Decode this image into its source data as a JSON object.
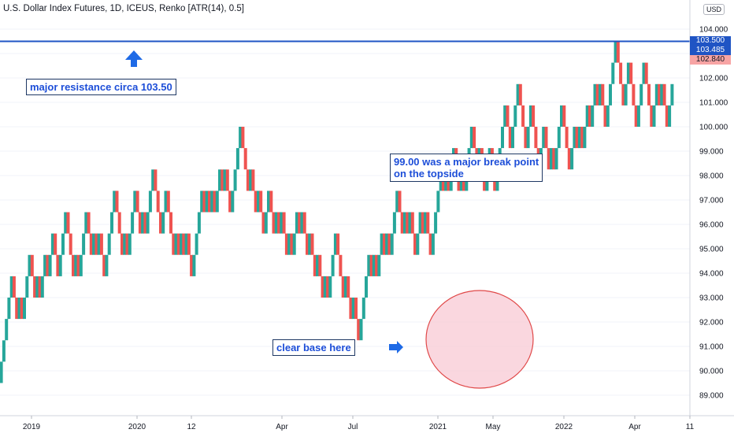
{
  "header": {
    "title": "U.S. Dollar Index Futures, 1D, ICEUS, Renko [ATR(14), 0.5]",
    "currency_badge": "USD"
  },
  "price_tags": [
    {
      "label": "103.500",
      "color": "#1f54c4"
    },
    {
      "label": "103.485",
      "color": "#1f54c4"
    },
    {
      "label": "102.840",
      "color": "#f7a4a4"
    }
  ],
  "annotations": {
    "resistance": "major resistance circa 103.50",
    "breakpoint_line1": "99.00 was a major break point",
    "breakpoint_line2": "on the topside",
    "base": "clear base here"
  },
  "colors": {
    "up": "#26a69a",
    "down": "#ef5350",
    "resistance_line": "#1f54c4",
    "arrow": "#1e6ae6",
    "base_ellipse_fill": "#f8c9d4",
    "base_ellipse_stroke": "#e04848"
  },
  "chart_data": {
    "type": "renko",
    "box_size": 0.5,
    "title": "U.S. Dollar Index Futures, 1D, ICEUS, Renko [ATR(14), 0.5]",
    "ylim": [
      88.4,
      104.3
    ],
    "y_ticks": [
      89,
      90,
      91,
      92,
      93,
      94,
      95,
      96,
      97,
      98,
      99,
      100,
      101,
      102,
      103,
      104
    ],
    "x_ticks": [
      "2019",
      "2020",
      "12",
      "Apr",
      "Jul",
      "2021",
      "May",
      "2022",
      "Apr",
      "11"
    ],
    "resistance_level": 103.5,
    "last_price": 103.485,
    "renko_boxes_net_moves": [
      5,
      -2,
      1,
      -1,
      3,
      -2,
      1,
      -1,
      2,
      -1,
      2,
      -2,
      3,
      -3,
      1,
      -1,
      3,
      -2,
      1,
      -1,
      1,
      -2,
      4,
      -3,
      1,
      -1,
      3,
      -2,
      1,
      -1,
      3,
      -3,
      2,
      -3,
      1,
      -1,
      1,
      -1,
      1,
      -2,
      4,
      -1,
      1,
      -1,
      1,
      -1,
      2,
      -1,
      1,
      -2,
      4,
      -3,
      1,
      -2,
      1,
      -2,
      2,
      -2,
      1,
      -1,
      1,
      -2,
      1,
      -1,
      2,
      -1,
      1,
      -2,
      1,
      -2,
      1,
      -2,
      1,
      -1,
      3,
      -3,
      1,
      -2,
      1,
      -2,
      4,
      -1,
      1,
      -1,
      2,
      -1,
      1,
      -1,
      3,
      -2,
      1,
      -1,
      1,
      -2,
      2,
      -1,
      1,
      -2,
      4,
      -1,
      1,
      -1,
      2,
      -2,
      1,
      -1,
      3,
      -2,
      1,
      -2,
      2,
      -2,
      4,
      -2,
      3,
      -3,
      2,
      -3,
      2,
      -2,
      1,
      -1,
      3,
      -3,
      2,
      -1,
      1,
      -1,
      2,
      -1,
      2,
      -1,
      1,
      -2,
      4,
      -3,
      2,
      -3,
      3,
      -3,
      2,
      -1,
      1,
      -2,
      2
    ]
  }
}
